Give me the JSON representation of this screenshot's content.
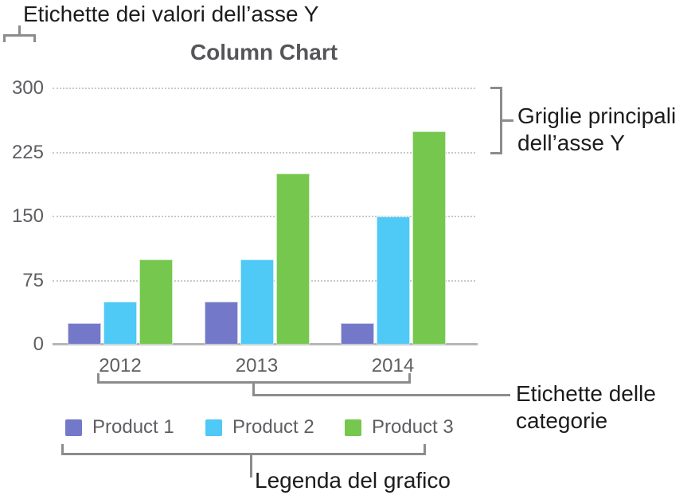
{
  "annotations": {
    "y_value_labels": "Etichette dei valori dell’asse Y",
    "y_major_gridlines": "Griglie principali\ndell’asse Y",
    "category_labels": "Etichette delle\ncategorie",
    "chart_legend": "Legenda del grafico"
  },
  "chart_data": {
    "type": "bar",
    "title": "Column Chart",
    "categories": [
      "2012",
      "2013",
      "2014"
    ],
    "series": [
      {
        "name": "Product 1",
        "color": "#7379C8",
        "values": [
          25,
          50,
          25
        ]
      },
      {
        "name": "Product 2",
        "color": "#4FC9F5",
        "values": [
          50,
          100,
          150
        ]
      },
      {
        "name": "Product 3",
        "color": "#76C74E",
        "values": [
          100,
          200,
          250
        ]
      }
    ],
    "xlabel": "",
    "ylabel": "",
    "ylim": [
      0,
      300
    ],
    "yticks": [
      0,
      75,
      150,
      225,
      300
    ],
    "grid": true,
    "gridline_style": "dotted",
    "legend_position": "bottom",
    "text_color": "#5E5E62",
    "grid_color": "#C9C9C9",
    "axis_color": "#B7B7B9",
    "callout_color": "#8C8C8C"
  }
}
